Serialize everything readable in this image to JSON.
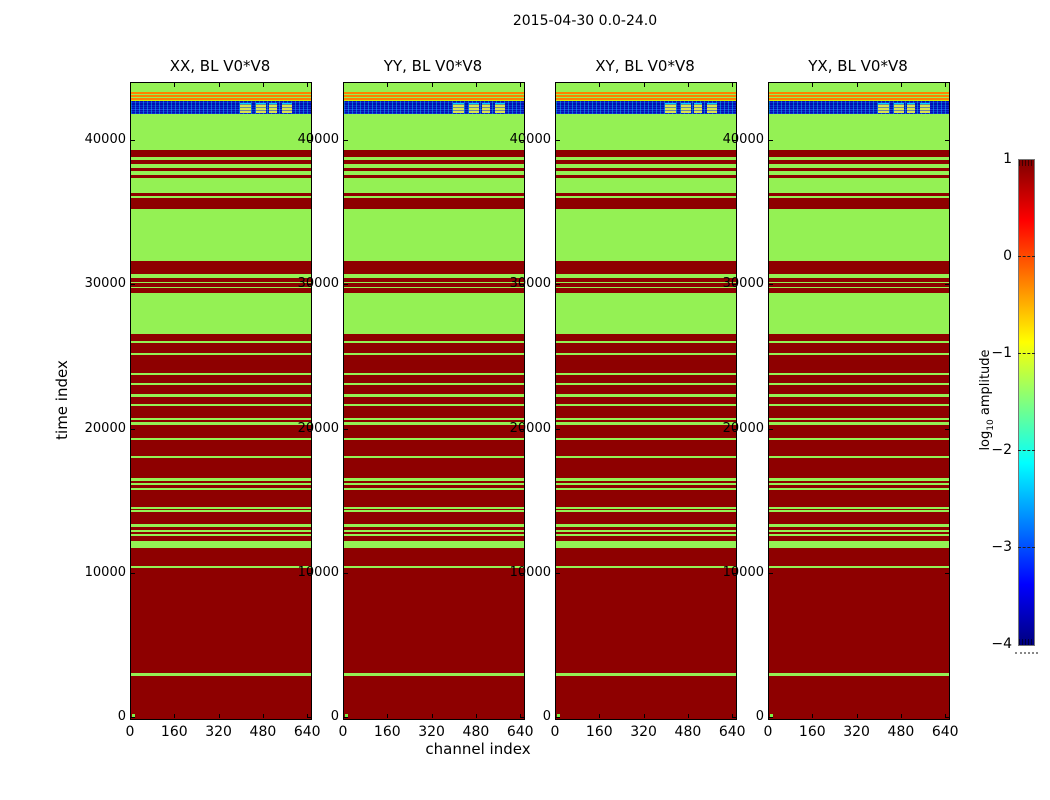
{
  "figure": {
    "title": "2015-04-30 0.0-24.0",
    "xlabel": "channel index",
    "ylabel": "time index",
    "colorbar": {
      "label_log": "log",
      "label_sub": "10",
      "label_rest": " amplitude",
      "tick_labels": [
        "1",
        "0",
        "−1",
        "−2",
        "−3",
        "−4"
      ]
    }
  },
  "chart_data": {
    "type": "heatmap",
    "title": "2015-04-30 0.0-24.0",
    "xlabel": "channel index",
    "ylabel": "time index",
    "subplots": [
      {
        "title": "XX, BL V0*V8"
      },
      {
        "title": "YY, BL V0*V8"
      },
      {
        "title": "XY, BL V0*V8"
      },
      {
        "title": "YX, BL V0*V8"
      }
    ],
    "xlim": [
      0,
      650
    ],
    "ylim": [
      0,
      44000
    ],
    "x_ticks": [
      0,
      160,
      320,
      480,
      640
    ],
    "y_ticks": [
      0,
      10000,
      20000,
      30000,
      40000
    ],
    "colorbar": {
      "label": "log10 amplitude",
      "ticks": [
        1,
        0,
        -1,
        -2,
        -3,
        -4
      ],
      "colormap": "jet",
      "gradient_stops": [
        [
          "#7f0000",
          0
        ],
        [
          "#ff0000",
          12.5
        ],
        [
          "#ffff00",
          37.5
        ],
        [
          "#00ffff",
          62.5
        ],
        [
          "#0000ff",
          87.5
        ],
        [
          "#00007f",
          100
        ]
      ]
    },
    "colors": {
      "background": "#94f154",
      "red_band": "#8e0000",
      "orange_band": "#ff8200",
      "yellow_band": "#dcec00",
      "blue_dark": "#0008a8",
      "blue_mid": "#2340e0",
      "cyan_speckle": "#00d8ff",
      "block_yellow": "#d8e44c",
      "corner_green": "#7df046"
    },
    "bands": [
      [
        43270,
        43410,
        "orange"
      ],
      [
        43050,
        43190,
        "orange"
      ],
      [
        42840,
        42980,
        "orange"
      ],
      [
        42760,
        42830,
        "yellow"
      ],
      [
        38900,
        39360,
        "red"
      ],
      [
        38380,
        38650,
        "red"
      ],
      [
        37920,
        38140,
        "red"
      ],
      [
        37450,
        37610,
        "red"
      ],
      [
        36180,
        36410,
        "red"
      ],
      [
        35260,
        36060,
        "red"
      ],
      [
        30770,
        31690,
        "red"
      ],
      [
        30230,
        30530,
        "red"
      ],
      [
        29890,
        30180,
        "red"
      ],
      [
        29450,
        29840,
        "red"
      ],
      [
        26140,
        26655,
        "red"
      ],
      [
        25340,
        25980,
        "red"
      ],
      [
        23955,
        25180,
        "red"
      ],
      [
        23265,
        23795,
        "red"
      ],
      [
        22455,
        23105,
        "red"
      ],
      [
        21805,
        22295,
        "red"
      ],
      [
        20825,
        21645,
        "red"
      ],
      [
        20520,
        20665,
        "red"
      ],
      [
        19450,
        20360,
        "red"
      ],
      [
        18185,
        19290,
        "red"
      ],
      [
        16640,
        18025,
        "red"
      ],
      [
        16320,
        16480,
        "red"
      ],
      [
        16000,
        16160,
        "red"
      ],
      [
        14700,
        15840,
        "red"
      ],
      [
        14480,
        14540,
        "red"
      ],
      [
        13460,
        14320,
        "red"
      ],
      [
        13085,
        13300,
        "red"
      ],
      [
        12810,
        12925,
        "red"
      ],
      [
        12315,
        12650,
        "red"
      ],
      [
        10585,
        11855,
        "red"
      ],
      [
        3180,
        10425,
        "red"
      ],
      [
        0,
        2975,
        "red"
      ]
    ],
    "blue_band": {
      "t0": 41850,
      "t1": 42760,
      "blocks": [
        [
          393,
          435
        ],
        [
          452,
          486
        ],
        [
          497,
          529
        ],
        [
          545,
          581
        ]
      ]
    },
    "corner_square": {
      "channels": [
        0,
        12
      ],
      "times": [
        0,
        280
      ]
    }
  }
}
